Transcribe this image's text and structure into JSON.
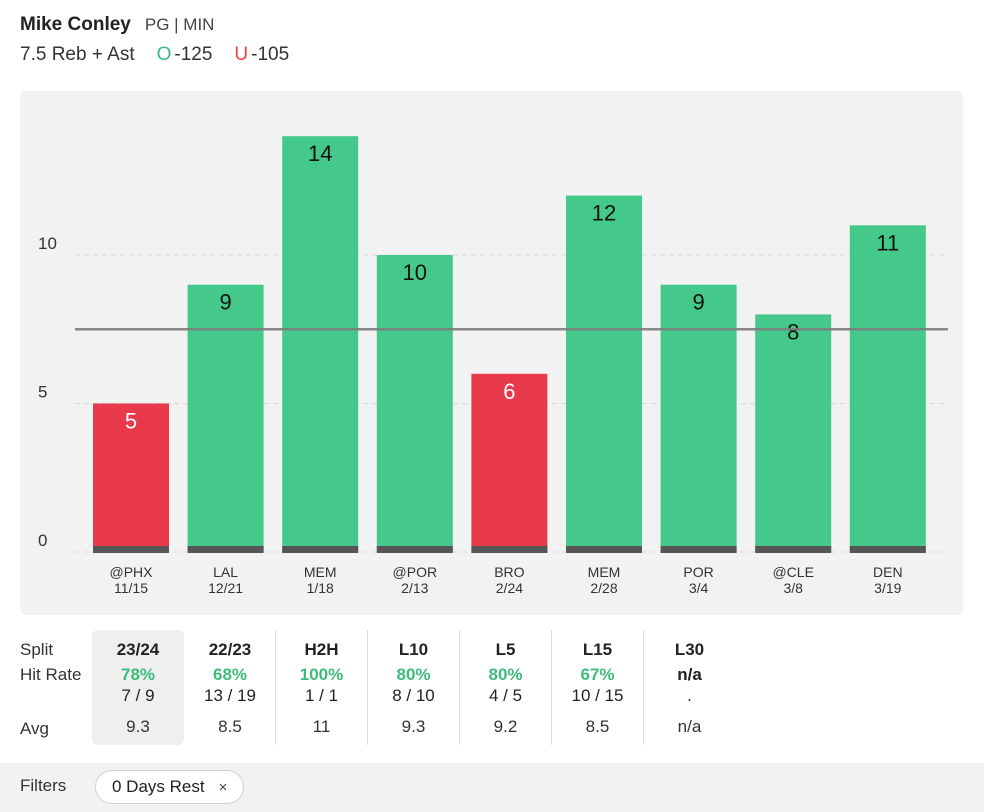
{
  "header": {
    "player_name": "Mike Conley",
    "player_meta": "PG | MIN",
    "prop_label": "7.5 Reb + Ast",
    "over_letter": "O",
    "over_odds": "-125",
    "under_letter": "U",
    "under_odds": "-105"
  },
  "chart_data": {
    "type": "bar",
    "categories": [
      "@PHX",
      "LAL",
      "MEM",
      "@POR",
      "BRO",
      "MEM",
      "POR",
      "@CLE",
      "DEN"
    ],
    "dates": [
      "11/15",
      "12/21",
      "1/18",
      "2/13",
      "2/24",
      "2/28",
      "3/4",
      "3/8",
      "3/19"
    ],
    "values": [
      5,
      9,
      14,
      10,
      6,
      12,
      9,
      8,
      11
    ],
    "line": 7.5,
    "ylim": [
      0,
      15
    ],
    "yticks": [
      0,
      5,
      10
    ],
    "colors": {
      "over": "#45c98a",
      "under": "#e8394a",
      "baseline": "#555555",
      "line": "#7d7d7d"
    }
  },
  "splits": {
    "row_labels": {
      "split": "Split",
      "hit_rate": "Hit Rate",
      "avg": "Avg"
    },
    "columns": [
      {
        "label": "23/24",
        "rate": "78%",
        "count": "7 / 9",
        "avg": "9.3"
      },
      {
        "label": "22/23",
        "rate": "68%",
        "count": "13 / 19",
        "avg": "8.5"
      },
      {
        "label": "H2H",
        "rate": "100%",
        "count": "1 / 1",
        "avg": "11"
      },
      {
        "label": "L10",
        "rate": "80%",
        "count": "8 / 10",
        "avg": "9.3"
      },
      {
        "label": "L5",
        "rate": "80%",
        "count": "4 / 5",
        "avg": "9.2"
      },
      {
        "label": "L15",
        "rate": "67%",
        "count": "10 / 15",
        "avg": "8.5"
      },
      {
        "label": "L30",
        "rate": "n/a",
        "count": ".",
        "avg": "n/a"
      }
    ]
  },
  "filters": {
    "label": "Filters",
    "chips": [
      {
        "label": "0 Days Rest",
        "remove_symbol": "×"
      }
    ]
  }
}
